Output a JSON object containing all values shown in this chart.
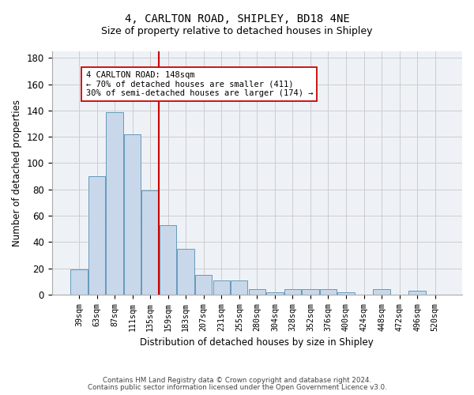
{
  "title": "4, CARLTON ROAD, SHIPLEY, BD18 4NE",
  "subtitle": "Size of property relative to detached houses in Shipley",
  "xlabel": "Distribution of detached houses by size in Shipley",
  "ylabel": "Number of detached properties",
  "footnote1": "Contains HM Land Registry data © Crown copyright and database right 2024.",
  "footnote2": "Contains public sector information licensed under the Open Government Licence v3.0.",
  "bar_color": "#c8d8ea",
  "bar_edge_color": "#6699bb",
  "grid_color": "#cccccc",
  "vline_color": "#cc0000",
  "annotation_box_color": "#cc0000",
  "categories": [
    "39sqm",
    "63sqm",
    "87sqm",
    "111sqm",
    "135sqm",
    "159sqm",
    "183sqm",
    "207sqm",
    "231sqm",
    "255sqm",
    "280sqm",
    "304sqm",
    "328sqm",
    "352sqm",
    "376sqm",
    "400sqm",
    "424sqm",
    "448sqm",
    "472sqm",
    "496sqm",
    "520sqm"
  ],
  "values": [
    19,
    90,
    139,
    122,
    79,
    53,
    35,
    15,
    11,
    11,
    4,
    2,
    4,
    4,
    4,
    2,
    0,
    4,
    0,
    3,
    0
  ],
  "vline_position": 4.5,
  "annotation_line1": "4 CARLTON ROAD: 148sqm",
  "annotation_line2": "← 70% of detached houses are smaller (411)",
  "annotation_line3": "30% of semi-detached houses are larger (174) →",
  "ylim": [
    0,
    185
  ],
  "yticks": [
    0,
    20,
    40,
    60,
    80,
    100,
    120,
    140,
    160,
    180
  ],
  "background_color": "#eef2f7",
  "title_fontsize": 10,
  "subtitle_fontsize": 9
}
